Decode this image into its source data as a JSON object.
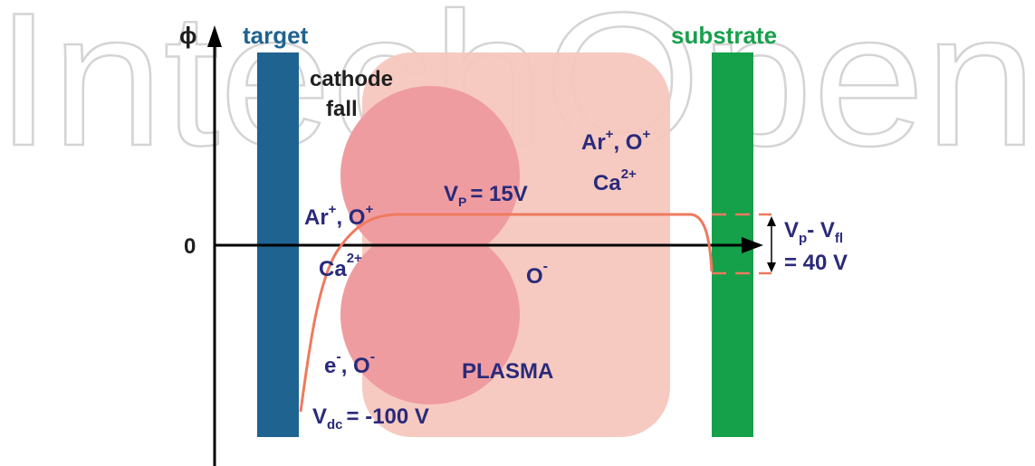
{
  "watermark": "IntechOpen",
  "axis": {
    "y_symbol": "ϕ",
    "zero_label": "0"
  },
  "electrodes": {
    "target": "target",
    "substrate": "substrate"
  },
  "labels": {
    "cathode_fall_line1": "cathode",
    "cathode_fall_line2": "fall",
    "vp": "V",
    "vp_sub": "P",
    "vp_value": "= 15V",
    "ions_right_line1": "Ar",
    "ions_right_sup1": "+",
    "ions_right_sep": ", O",
    "ions_right_sup2": "+",
    "ions_right_line2": "Ca",
    "ions_right_sup3": "2+",
    "ions_left_line1": "Ar",
    "ions_left_sup1": "+",
    "ions_left_sep": ", O",
    "ions_left_sup2": "+",
    "ions_left_line2": "Ca",
    "ions_left_sup3": "2+",
    "o_minus": "O",
    "o_minus_sup": "-",
    "electrons": "e",
    "electrons_sup": "-",
    "electrons_sep": ", O",
    "electrons_sup2": "-",
    "plasma": "PLASMA",
    "vdc": "V",
    "vdc_sub": "dc",
    "vdc_value": "= -100 V",
    "vfl_part1": "V",
    "vfl_sub1": "p",
    "vfl_dash": "- V",
    "vfl_sub2": "fl",
    "vfl_value": "= 40 V"
  },
  "colors": {
    "target": "#1f6391",
    "substrate": "#15a04a",
    "plasma": "#f5c7be",
    "cathode_fall": "#ef9ca1",
    "potential_curve": "#ef7a5e",
    "text_navy": "#2a2a7a"
  }
}
